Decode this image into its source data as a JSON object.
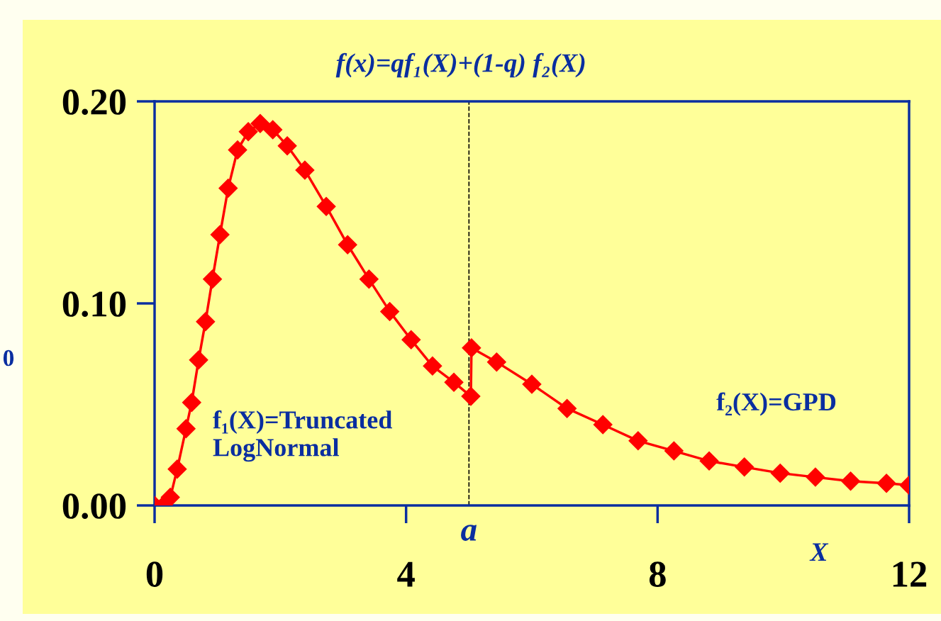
{
  "chart_data": {
    "type": "line",
    "title": "f(x)=qf₁(X)+(1-q) f₂(X)",
    "xlabel": "X",
    "ylabel": "0",
    "x": [
      0,
      0.14,
      0.25,
      0.36,
      0.5,
      0.59,
      0.7,
      0.81,
      0.92,
      1.04,
      1.17,
      1.32,
      1.49,
      1.68,
      1.88,
      2.11,
      2.39,
      2.73,
      3.07,
      3.41,
      3.74,
      4.08,
      4.42,
      4.76,
      5.03,
      5.04,
      5.44,
      6.0,
      6.56,
      7.13,
      7.69,
      8.26,
      8.82,
      9.38,
      9.95,
      10.51,
      11.07,
      11.64,
      12
    ],
    "series": [
      {
        "color": "#ff0000",
        "values": [
          0,
          0,
          0.004,
          0.018,
          0.038,
          0.051,
          0.072,
          0.091,
          0.112,
          0.134,
          0.157,
          0.176,
          0.185,
          0.189,
          0.186,
          0.178,
          0.166,
          0.148,
          0.129,
          0.112,
          0.096,
          0.082,
          0.069,
          0.061,
          0.054,
          0.078,
          0.071,
          0.06,
          0.048,
          0.04,
          0.032,
          0.027,
          0.022,
          0.019,
          0.016,
          0.014,
          0.012,
          0.011,
          0.01
        ]
      }
    ],
    "marker": "diamond",
    "xlim": [
      0,
      12
    ],
    "xticks": [
      0,
      4,
      8,
      12
    ],
    "ylim": [
      0,
      0.2
    ],
    "yticks": [
      {
        "value": 0,
        "label": "0.00"
      },
      {
        "value": 0.1,
        "label": "0.10"
      },
      {
        "value": 0.2,
        "label": "0.20"
      }
    ],
    "grid": false,
    "ref_lines": [
      {
        "axis": "x",
        "value": 5,
        "label": "a",
        "color": "#000000",
        "line_style": "dashed"
      }
    ],
    "annotations": [
      "f₁(X)=Truncated\nLogNormal",
      "f₂(X)=GPD"
    ]
  }
}
